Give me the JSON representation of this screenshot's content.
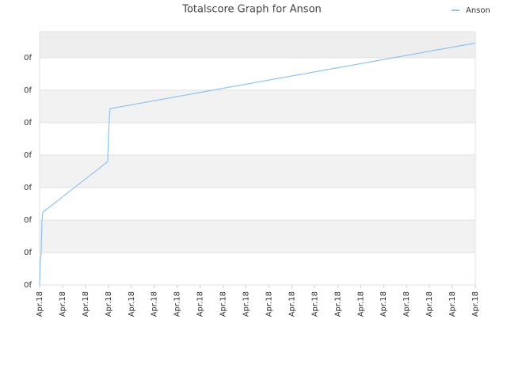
{
  "chart_data": {
    "type": "line",
    "title": "Totalscore Graph for Anson",
    "x": [
      0,
      0.03,
      0.07,
      0.1,
      0.14,
      2.97,
      3.0,
      3.07,
      19
    ],
    "series": [
      {
        "name": "Anson",
        "color": "#90c3f0",
        "values": [
          0,
          0.73,
          1.02,
          1.95,
          2.24,
          3.8,
          4.62,
          5.43,
          7.45
        ]
      }
    ],
    "xlim": [
      0,
      19
    ],
    "xticks": [
      {
        "value": 0,
        "label": "Apr.18"
      },
      {
        "value": 1,
        "label": "Apr.18"
      },
      {
        "value": 2,
        "label": "Apr.18"
      },
      {
        "value": 3,
        "label": "Apr.18"
      },
      {
        "value": 4,
        "label": "Apr.18"
      },
      {
        "value": 5,
        "label": "Apr.18"
      },
      {
        "value": 6,
        "label": "Apr.18"
      },
      {
        "value": 7,
        "label": "Apr.18"
      },
      {
        "value": 8,
        "label": "Apr.18"
      },
      {
        "value": 9,
        "label": "Apr.18"
      },
      {
        "value": 10,
        "label": "Apr.18"
      },
      {
        "value": 11,
        "label": "Apr.18"
      },
      {
        "value": 12,
        "label": "Apr.18"
      },
      {
        "value": 13,
        "label": "Apr.18"
      },
      {
        "value": 14,
        "label": "Apr.18"
      },
      {
        "value": 15,
        "label": "Apr.18"
      },
      {
        "value": 16,
        "label": "Apr.18"
      },
      {
        "value": 17,
        "label": "Apr.18"
      },
      {
        "value": 18,
        "label": "Apr.18"
      },
      {
        "value": 19,
        "label": "Apr.18"
      }
    ],
    "ylim": [
      0,
      7.8
    ],
    "yticks": [
      {
        "value": 0,
        "label": "0f"
      },
      {
        "value": 1,
        "label": "0f"
      },
      {
        "value": 2,
        "label": "0f"
      },
      {
        "value": 3,
        "label": "0f"
      },
      {
        "value": 4,
        "label": "0f"
      },
      {
        "value": 5,
        "label": "0f"
      },
      {
        "value": 6,
        "label": "0f"
      },
      {
        "value": 7,
        "label": "0f"
      }
    ],
    "grid": true,
    "legend": "top-right"
  }
}
